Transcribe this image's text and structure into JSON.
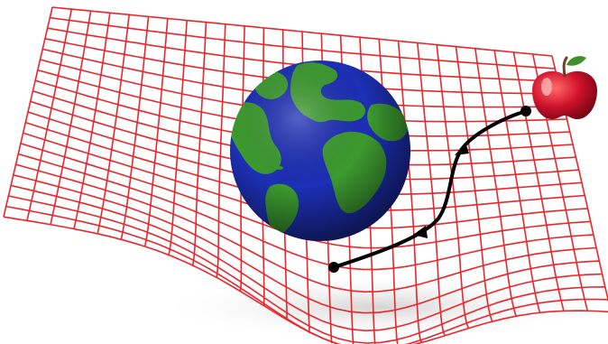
{
  "illustration": {
    "mesh_color": "#e8262b",
    "mesh_rows": 20,
    "mesh_cols": 26,
    "mesh_shadow_color": "#d9d9d9",
    "planet": {
      "ocean_color": "#1d2fb5",
      "land_color": "#3c9a2f",
      "shading_color": "#0a1240",
      "icon": "earth-globe-icon"
    },
    "apple": {
      "body_color": "#c8102e",
      "highlight_color": "#ff8a8a",
      "stem_color": "#6b4226",
      "leaf_color": "#3f8f2a",
      "icon": "apple-icon"
    },
    "trajectory": {
      "color": "#000000",
      "markers": [
        "start-dot",
        "end-dot"
      ],
      "arrow_count": 2
    }
  }
}
